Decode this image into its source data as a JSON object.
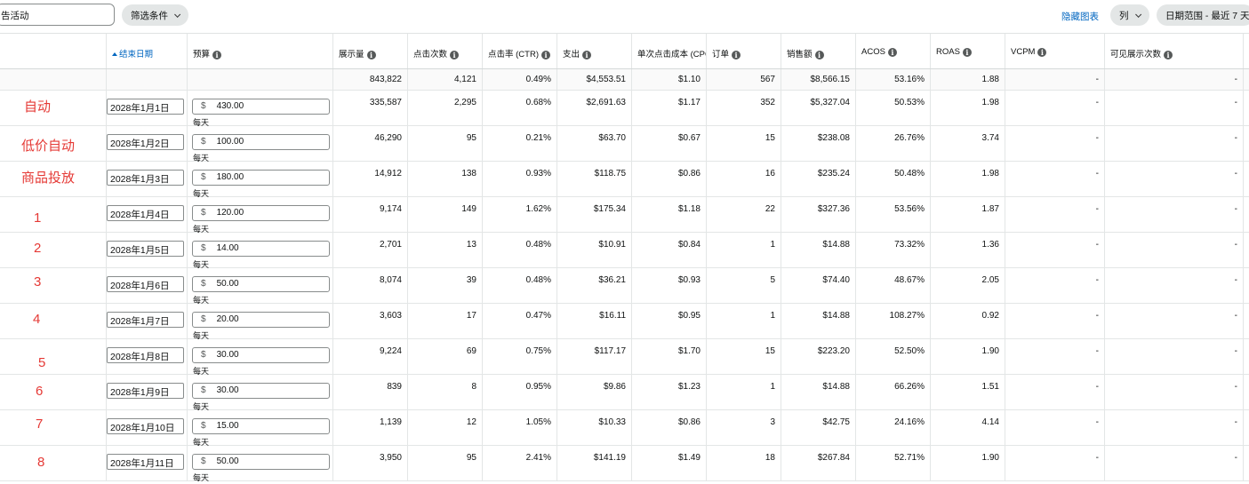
{
  "toolbar": {
    "search_value": "告活动",
    "filter_label": "筛选条件",
    "hide_chart_label": "隐藏图表",
    "columns_label": "列",
    "date_range_label": "日期范围 - 最近 7 天"
  },
  "columns": [
    {
      "key": "end_date",
      "label": "结束日期",
      "info": false,
      "sort": true
    },
    {
      "key": "budget",
      "label": "预算",
      "info": true
    },
    {
      "key": "impressions",
      "label": "展示量",
      "info": true
    },
    {
      "key": "clicks",
      "label": "点击次数",
      "info": true
    },
    {
      "key": "ctr",
      "label": "点击率 (CTR)",
      "info": true
    },
    {
      "key": "spend",
      "label": "支出",
      "info": true
    },
    {
      "key": "cpc",
      "label": "单次点击成本 (CPC)",
      "info": false
    },
    {
      "key": "orders",
      "label": "订单",
      "info": true
    },
    {
      "key": "sales",
      "label": "销售额",
      "info": true
    },
    {
      "key": "acos",
      "label": "ACOS",
      "info": true
    },
    {
      "key": "roas",
      "label": "ROAS",
      "info": true
    },
    {
      "key": "vcpm",
      "label": "VCPM",
      "info": true
    },
    {
      "key": "viewable",
      "label": "可见展示次数",
      "info": true
    }
  ],
  "totals": {
    "impressions": "843,822",
    "clicks": "4,121",
    "ctr": "0.49%",
    "spend": "$4,553.51",
    "cpc": "$1.10",
    "orders": "567",
    "sales": "$8,566.15",
    "acos": "53.16%",
    "roas": "1.88",
    "vcpm": "-",
    "viewable": "-"
  },
  "budget_currency": "$",
  "budget_period": "每天",
  "rows": [
    {
      "annotation": "自动",
      "end_date": "2028年1月1日",
      "budget": "430.00",
      "impressions": "335,587",
      "clicks": "2,295",
      "ctr": "0.68%",
      "spend": "$2,691.63",
      "cpc": "$1.17",
      "orders": "352",
      "sales": "$5,327.04",
      "acos": "50.53%",
      "roas": "1.98",
      "vcpm": "-",
      "viewable": "-"
    },
    {
      "annotation": "低价自动",
      "end_date": "2028年1月2日",
      "budget": "100.00",
      "impressions": "46,290",
      "clicks": "95",
      "ctr": "0.21%",
      "spend": "$63.70",
      "cpc": "$0.67",
      "orders": "15",
      "sales": "$238.08",
      "acos": "26.76%",
      "roas": "3.74",
      "vcpm": "-",
      "viewable": "-"
    },
    {
      "annotation": "商品投放",
      "end_date": "2028年1月3日",
      "budget": "180.00",
      "impressions": "14,912",
      "clicks": "138",
      "ctr": "0.93%",
      "spend": "$118.75",
      "cpc": "$0.86",
      "orders": "16",
      "sales": "$235.24",
      "acos": "50.48%",
      "roas": "1.98",
      "vcpm": "-",
      "viewable": "-"
    },
    {
      "annotation": "1",
      "end_date": "2028年1月4日",
      "budget": "120.00",
      "impressions": "9,174",
      "clicks": "149",
      "ctr": "1.62%",
      "spend": "$175.34",
      "cpc": "$1.18",
      "orders": "22",
      "sales": "$327.36",
      "acos": "53.56%",
      "roas": "1.87",
      "vcpm": "-",
      "viewable": "-"
    },
    {
      "annotation": "2",
      "end_date": "2028年1月5日",
      "budget": "14.00",
      "impressions": "2,701",
      "clicks": "13",
      "ctr": "0.48%",
      "spend": "$10.91",
      "cpc": "$0.84",
      "orders": "1",
      "sales": "$14.88",
      "acos": "73.32%",
      "roas": "1.36",
      "vcpm": "-",
      "viewable": "-"
    },
    {
      "annotation": "3",
      "end_date": "2028年1月6日",
      "budget": "50.00",
      "impressions": "8,074",
      "clicks": "39",
      "ctr": "0.48%",
      "spend": "$36.21",
      "cpc": "$0.93",
      "orders": "5",
      "sales": "$74.40",
      "acos": "48.67%",
      "roas": "2.05",
      "vcpm": "-",
      "viewable": "-"
    },
    {
      "annotation": "4",
      "end_date": "2028年1月7日",
      "budget": "20.00",
      "impressions": "3,603",
      "clicks": "17",
      "ctr": "0.47%",
      "spend": "$16.11",
      "cpc": "$0.95",
      "orders": "1",
      "sales": "$14.88",
      "acos": "108.27%",
      "roas": "0.92",
      "vcpm": "-",
      "viewable": "-"
    },
    {
      "annotation": "5",
      "end_date": "2028年1月8日",
      "budget": "30.00",
      "impressions": "9,224",
      "clicks": "69",
      "ctr": "0.75%",
      "spend": "$117.17",
      "cpc": "$1.70",
      "orders": "15",
      "sales": "$223.20",
      "acos": "52.50%",
      "roas": "1.90",
      "vcpm": "-",
      "viewable": "-"
    },
    {
      "annotation": "6",
      "end_date": "2028年1月9日",
      "budget": "30.00",
      "impressions": "839",
      "clicks": "8",
      "ctr": "0.95%",
      "spend": "$9.86",
      "cpc": "$1.23",
      "orders": "1",
      "sales": "$14.88",
      "acos": "66.26%",
      "roas": "1.51",
      "vcpm": "-",
      "viewable": "-"
    },
    {
      "annotation": "7",
      "end_date": "2028年1月10日",
      "budget": "15.00",
      "impressions": "1,139",
      "clicks": "12",
      "ctr": "1.05%",
      "spend": "$10.33",
      "cpc": "$0.86",
      "orders": "3",
      "sales": "$42.75",
      "acos": "24.16%",
      "roas": "4.14",
      "vcpm": "-",
      "viewable": "-"
    },
    {
      "annotation": "8",
      "end_date": "2028年1月11日",
      "budget": "50.00",
      "impressions": "3,950",
      "clicks": "95",
      "ctr": "2.41%",
      "spend": "$141.19",
      "cpc": "$1.49",
      "orders": "18",
      "sales": "$267.84",
      "acos": "52.71%",
      "roas": "1.90",
      "vcpm": "-",
      "viewable": "-"
    }
  ]
}
